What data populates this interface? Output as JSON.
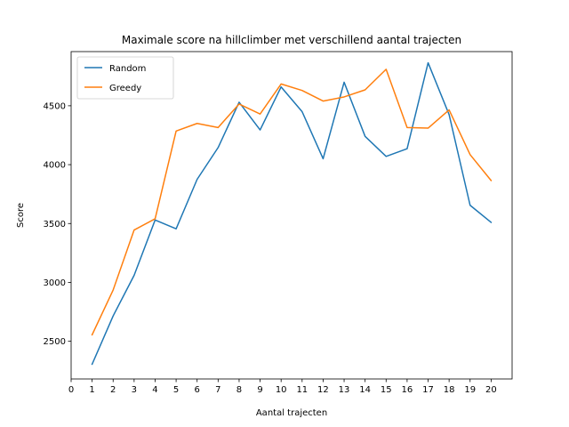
{
  "chart_data": {
    "type": "line",
    "title": "Maximale score na hillclimber met verschillend aantal trajecten",
    "xlabel": "Aantal trajecten",
    "ylabel": "Score",
    "xlim": [
      0,
      21
    ],
    "ylim": [
      2180,
      4960
    ],
    "x_ticks": [
      0,
      1,
      2,
      3,
      4,
      5,
      6,
      7,
      8,
      9,
      10,
      11,
      12,
      13,
      14,
      15,
      16,
      17,
      18,
      19,
      20
    ],
    "y_ticks": [
      2500,
      3000,
      3500,
      4000,
      4500
    ],
    "x": [
      1,
      2,
      3,
      4,
      5,
      6,
      7,
      8,
      9,
      10,
      11,
      12,
      13,
      14,
      15,
      16,
      17,
      18,
      19,
      20
    ],
    "series": [
      {
        "name": "Random",
        "color": "#1f77b4",
        "values": [
          2305,
          2715,
          3060,
          3530,
          3455,
          3875,
          4145,
          4530,
          4295,
          4660,
          4450,
          4050,
          4700,
          4240,
          4070,
          4135,
          4865,
          4425,
          3655,
          3510
        ]
      },
      {
        "name": "Greedy",
        "color": "#ff7f0e",
        "values": [
          2555,
          2935,
          3445,
          3540,
          4285,
          4350,
          4315,
          4515,
          4430,
          4685,
          4630,
          4540,
          4575,
          4635,
          4810,
          4315,
          4310,
          4465,
          4085,
          3865
        ]
      }
    ],
    "legend_position": "top-left",
    "grid": false
  }
}
